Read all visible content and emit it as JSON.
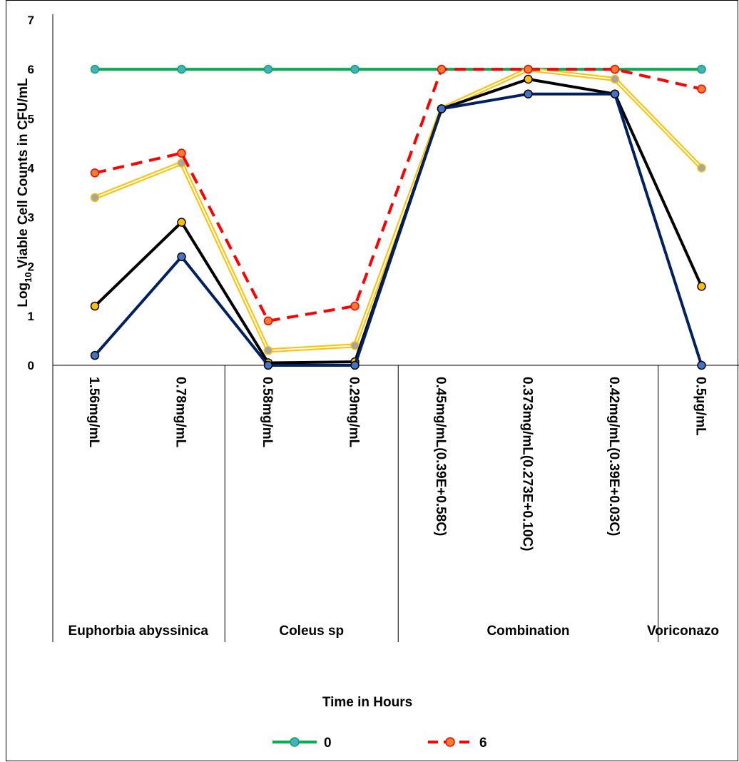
{
  "chart_data": {
    "type": "line",
    "xlabel": "Time in Hours",
    "ylabel_parts": [
      "Log",
      "10",
      " Viable Cell Counts in CFU/mL"
    ],
    "ylim": [
      0,
      7
    ],
    "yticks": [
      "0",
      "1",
      "2",
      "3",
      "4",
      "5",
      "6",
      "7"
    ],
    "categories": [
      "1.56mg/mL",
      "0.78mg/mL",
      "0.58mg/mL",
      "0.29mg/mL",
      "0.45mg/mL(0.39E+0.58C)",
      "0.373mg/mL(0.273E+0.10C)",
      "0.42mg/mL(0.39E+0.03C)",
      "0.5µg/mL"
    ],
    "groups": [
      {
        "label": "Euphorbia abyssinica",
        "span": [
          0,
          1
        ]
      },
      {
        "label": "Coleus sp",
        "span": [
          2,
          3
        ]
      },
      {
        "label": "Combination",
        "span": [
          4,
          6
        ]
      },
      {
        "label": "Voriconazo",
        "span": [
          7,
          7
        ]
      }
    ],
    "series": [
      {
        "name": "0",
        "color": "#00b050",
        "marker": "#4aacc6",
        "dash": false,
        "values": [
          6,
          6,
          6,
          6,
          6,
          6,
          6,
          6
        ]
      },
      {
        "color": "#ffc000",
        "marker": "#a5a5a5",
        "dash": false,
        "double": true,
        "values": [
          3.4,
          4.1,
          0.3,
          0.4,
          5.2,
          6.0,
          5.8,
          4.0
        ]
      },
      {
        "color": "#000000",
        "marker": "#ffc000",
        "dash": false,
        "values": [
          1.2,
          2.9,
          0.05,
          0.07,
          5.2,
          5.8,
          5.5,
          1.6
        ]
      },
      {
        "color": "#002060",
        "marker": "#4472c4",
        "dash": false,
        "values": [
          0.2,
          2.2,
          0,
          0,
          5.2,
          5.5,
          5.5,
          0
        ]
      },
      {
        "name": "6",
        "color": "#ff0000",
        "marker": "#ed7d31",
        "dash": true,
        "values": [
          3.9,
          4.3,
          0.9,
          1.2,
          6.0,
          6.0,
          6.0,
          5.6
        ]
      }
    ],
    "legend": {
      "placement": "bottom",
      "entries": [
        "0",
        "6"
      ]
    }
  }
}
